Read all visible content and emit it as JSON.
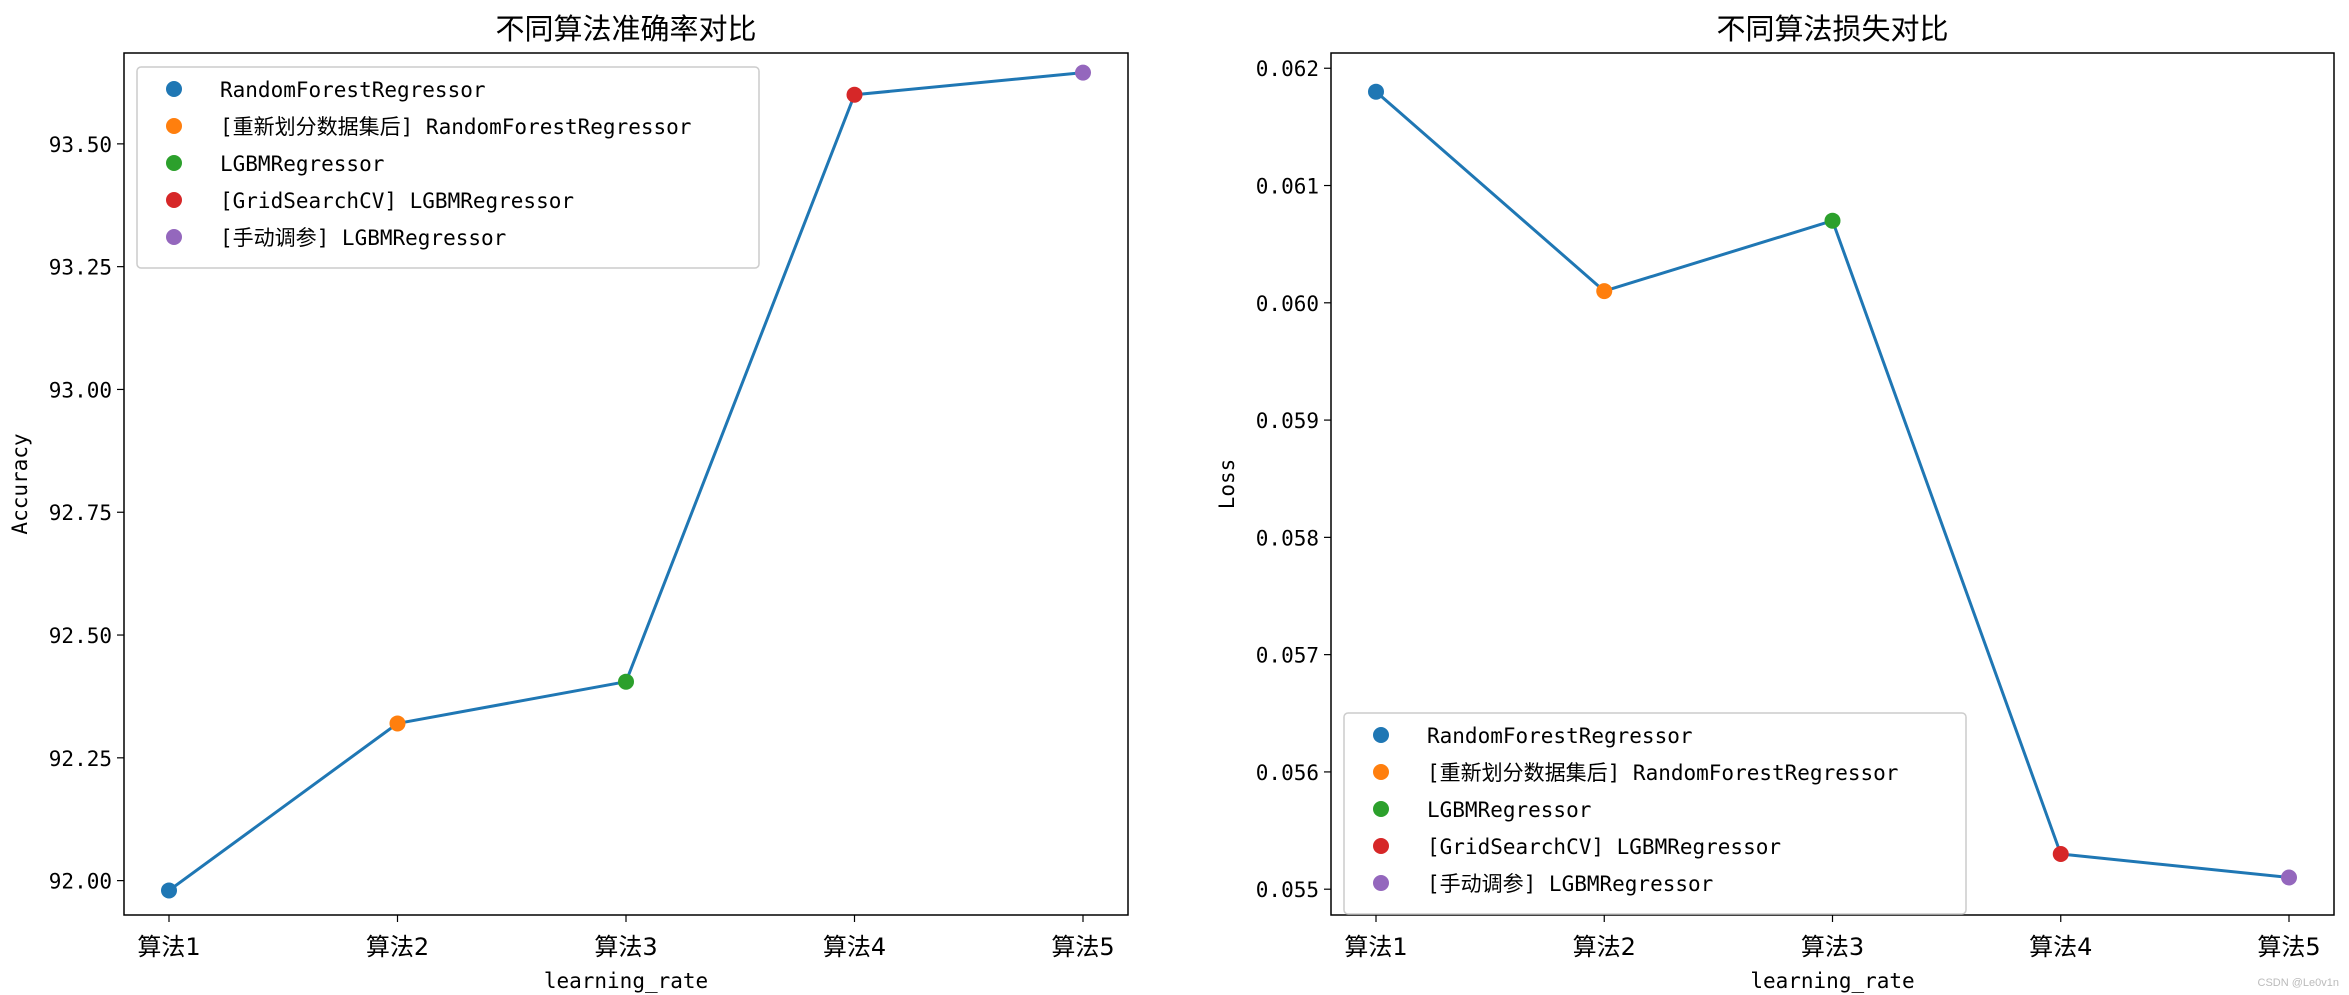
{
  "chart_data": [
    {
      "type": "line",
      "title": "不同算法准确率对比",
      "xlabel": "learning_rate",
      "ylabel": "Accuracy",
      "categories": [
        "算法1",
        "算法2",
        "算法3",
        "算法4",
        "算法5"
      ],
      "values": [
        91.98,
        92.32,
        92.405,
        93.6,
        93.645
      ],
      "ylim": [
        91.93,
        93.685
      ],
      "yticks": [
        "92.00",
        "92.25",
        "92.50",
        "92.75",
        "93.00",
        "93.25",
        "93.50"
      ],
      "ytick_values": [
        92.0,
        92.25,
        92.5,
        92.75,
        93.0,
        93.25,
        93.5
      ],
      "line_color": "#1f77b4",
      "legend_loc": "upper left",
      "grid": false
    },
    {
      "type": "line",
      "title": "不同算法损失对比",
      "xlabel": "learning_rate",
      "ylabel": "Loss",
      "categories": [
        "算法1",
        "算法2",
        "算法3",
        "算法4",
        "算法5"
      ],
      "values": [
        0.0618,
        0.0601,
        0.0607,
        0.0553,
        0.0551
      ],
      "ylim": [
        0.05478,
        0.06213
      ],
      "yticks": [
        "0.055",
        "0.056",
        "0.057",
        "0.058",
        "0.059",
        "0.060",
        "0.061",
        "0.062"
      ],
      "ytick_values": [
        0.055,
        0.056,
        0.057,
        0.058,
        0.059,
        0.06,
        0.061,
        0.062
      ],
      "line_color": "#1f77b4",
      "legend_loc": "lower left",
      "grid": false
    }
  ],
  "legend": [
    {
      "label": "RandomForestRegressor",
      "color": "#1f77b4"
    },
    {
      "label": "[重新划分数据集后] RandomForestRegressor",
      "color": "#ff7f0e"
    },
    {
      "label": "LGBMRegressor",
      "color": "#2ca02c"
    },
    {
      "label": "[GridSearchCV] LGBMRegressor",
      "color": "#d62728"
    },
    {
      "label": "[手动调参] LGBMRegressor",
      "color": "#9467bd"
    }
  ],
  "watermark": "CSDN @Le0v1n"
}
